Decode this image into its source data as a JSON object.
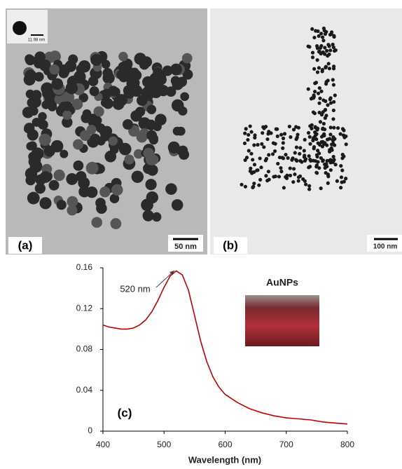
{
  "panels": [
    {
      "label": "(a)",
      "scale_bar": "50 nm",
      "inset_scale": "11.98 nm"
    },
    {
      "label": "(b)",
      "scale_bar": "100 nm"
    }
  ],
  "chart_data": {
    "type": "line",
    "xlabel": "Wavelength (nm)",
    "annotations": [
      "520 nm",
      "AuNPs",
      "(c)"
    ],
    "x": [
      400,
      410,
      420,
      430,
      440,
      450,
      460,
      470,
      480,
      490,
      500,
      510,
      520,
      530,
      540,
      550,
      560,
      570,
      580,
      590,
      600,
      620,
      640,
      660,
      680,
      700,
      720,
      740,
      760,
      780,
      800
    ],
    "values": [
      0.104,
      0.102,
      0.101,
      0.1,
      0.1,
      0.101,
      0.104,
      0.109,
      0.117,
      0.128,
      0.141,
      0.152,
      0.157,
      0.153,
      0.138,
      0.113,
      0.088,
      0.068,
      0.053,
      0.043,
      0.036,
      0.028,
      0.022,
      0.018,
      0.015,
      0.013,
      0.012,
      0.011,
      0.009,
      0.008,
      0.007
    ],
    "color": "#c00000",
    "xlim": [
      400,
      800
    ],
    "xticks": [
      400,
      500,
      600,
      700,
      800
    ],
    "ylim": [
      0,
      0.16
    ],
    "yticks": [
      0,
      0.04,
      0.08,
      0.12,
      0.16
    ]
  }
}
